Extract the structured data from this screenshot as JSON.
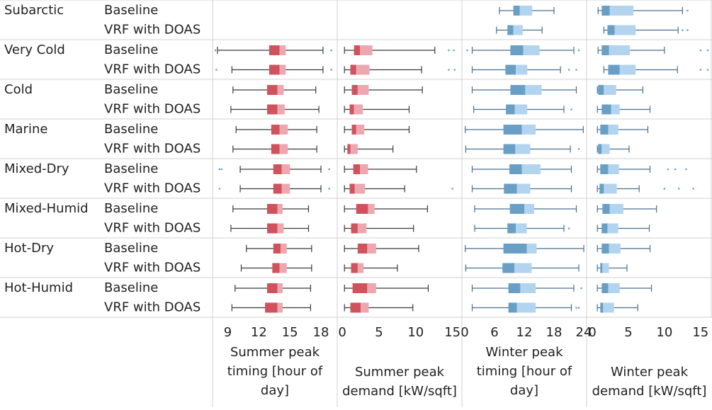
{
  "colors": {
    "summer_dark": "#d0525d",
    "summer_light": "#eda7ae",
    "winter_dark": "#6a9fc5",
    "winter_light": "#b3d4ef",
    "summer_whisker": "#3a3a3a",
    "winter_whisker": "#4a6f8f",
    "outlier": "#6a9fc5",
    "grid": "#d0d0d0"
  },
  "chart_data": {
    "type": "box",
    "climates": [
      "Subarctic",
      "Very Cold",
      "Cold",
      "Marine",
      "Mixed-Dry",
      "Mixed-Humid",
      "Hot-Dry",
      "Hot-Humid"
    ],
    "systems": [
      "Baseline",
      "VRF with DOAS"
    ],
    "panels": [
      {
        "id": "summer-timing",
        "label": "Summer peak timing [hour of day]",
        "label_lines": [
          "Summer peak",
          "timing [hour of",
          "day]"
        ],
        "range": [
          7.8,
          19.3
        ],
        "ticks": [
          9,
          12,
          15,
          18
        ],
        "tick_labels": [
          "9",
          "12",
          "15",
          "18"
        ],
        "season": "summer",
        "data": [
          [
            null,
            null
          ],
          [
            {
              "min": 8,
              "q1": 13,
              "med": 14,
              "q3": 14.6,
              "max": 18.2,
              "lo": [
                7.8
              ],
              "hi": [
                19
              ]
            },
            {
              "min": 9.4,
              "q1": 13,
              "med": 14,
              "q3": 14.6,
              "max": 18.2,
              "lo": [
                7.9
              ],
              "hi": [
                19
              ]
            }
          ],
          [
            {
              "min": 9.5,
              "q1": 12.8,
              "med": 13.8,
              "q3": 14.4,
              "max": 17.5,
              "lo": [],
              "hi": []
            },
            {
              "min": 9.3,
              "q1": 12.8,
              "med": 13.8,
              "q3": 14.5,
              "max": 17.8,
              "lo": [],
              "hi": []
            }
          ],
          [
            {
              "min": 9.8,
              "q1": 13.2,
              "med": 14,
              "q3": 14.8,
              "max": 17.6,
              "lo": [],
              "hi": []
            },
            {
              "min": 9.5,
              "q1": 13.2,
              "med": 14,
              "q3": 14.8,
              "max": 17.6,
              "lo": [],
              "hi": []
            }
          ],
          [
            {
              "min": 10.2,
              "q1": 13.4,
              "med": 14.2,
              "q3": 15,
              "max": 18,
              "lo": [
                8.2,
                8.4
              ],
              "hi": [
                18.8
              ]
            },
            {
              "min": 10.2,
              "q1": 13.4,
              "med": 14.2,
              "q3": 15,
              "max": 18,
              "lo": [
                8.2
              ],
              "hi": [
                18.8
              ]
            }
          ],
          [
            {
              "min": 9.5,
              "q1": 12.8,
              "med": 13.8,
              "q3": 14.3,
              "max": 16.8,
              "lo": [],
              "hi": []
            },
            {
              "min": 9.3,
              "q1": 12.8,
              "med": 13.8,
              "q3": 14.4,
              "max": 16.8,
              "lo": [],
              "hi": []
            }
          ],
          [
            {
              "min": 10.8,
              "q1": 13.4,
              "med": 14.1,
              "q3": 14.7,
              "max": 17.1,
              "lo": [],
              "hi": []
            },
            {
              "min": 10.3,
              "q1": 13.3,
              "med": 14,
              "q3": 14.7,
              "max": 17.1,
              "lo": [],
              "hi": []
            }
          ],
          [
            {
              "min": 9.7,
              "q1": 12.8,
              "med": 13.8,
              "q3": 14.3,
              "max": 17,
              "lo": [],
              "hi": []
            },
            {
              "min": 9.4,
              "q1": 12.6,
              "med": 13.8,
              "q3": 14.3,
              "max": 17,
              "lo": [],
              "hi": []
            }
          ]
        ]
      },
      {
        "id": "summer-demand",
        "label": "Summer peak demand [kW/sqft]",
        "label_lines": [
          "Summer peak",
          "demand [kW/sqft]"
        ],
        "range": [
          -0.3,
          15.9
        ],
        "ticks": [
          0,
          5,
          10,
          15
        ],
        "tick_labels": [
          "0",
          "5",
          "10",
          "15"
        ],
        "season": "summer",
        "data": [
          [
            null,
            null
          ],
          [
            {
              "min": 0.3,
              "q1": 1.6,
              "med": 2.4,
              "q3": 4.1,
              "max": 12.6,
              "lo": [],
              "hi": [
                14.5,
                15.2
              ]
            },
            {
              "min": 0.3,
              "q1": 1.1,
              "med": 1.9,
              "q3": 3.7,
              "max": 10.8,
              "lo": [],
              "hi": [
                14.5,
                15.3
              ]
            }
          ],
          [
            {
              "min": 0.3,
              "q1": 1.3,
              "med": 2.1,
              "q3": 3.6,
              "max": 10.9,
              "lo": [],
              "hi": []
            },
            {
              "min": 0.3,
              "q1": 1,
              "med": 1.6,
              "q3": 2.8,
              "max": 9.1,
              "lo": [],
              "hi": []
            }
          ],
          [
            {
              "min": 0.3,
              "q1": 1.3,
              "med": 1.9,
              "q3": 3,
              "max": 9.1,
              "lo": [],
              "hi": []
            },
            {
              "min": 0.3,
              "q1": 0.7,
              "med": 1.1,
              "q3": 2.1,
              "max": 6.9,
              "lo": [],
              "hi": []
            }
          ],
          [
            {
              "min": 0.3,
              "q1": 1.5,
              "med": 2.4,
              "q3": 3.5,
              "max": 10.1,
              "lo": [],
              "hi": []
            },
            {
              "min": 0.3,
              "q1": 1,
              "med": 1.7,
              "q3": 3.1,
              "max": 8.5,
              "lo": [],
              "hi": [
                15
              ]
            }
          ],
          [
            {
              "min": 0.3,
              "q1": 1.9,
              "med": 3.5,
              "q3": 4.4,
              "max": 11.6,
              "lo": [],
              "hi": []
            },
            {
              "min": 0.3,
              "q1": 1.2,
              "med": 2.1,
              "q3": 3.3,
              "max": 9.7,
              "lo": [],
              "hi": []
            }
          ],
          [
            {
              "min": 0.3,
              "q1": 2.1,
              "med": 3.4,
              "q3": 4.6,
              "max": 10.4,
              "lo": [],
              "hi": []
            },
            {
              "min": 0.3,
              "q1": 1.2,
              "med": 2.1,
              "q3": 2.9,
              "max": 7.5,
              "lo": [],
              "hi": []
            }
          ],
          [
            {
              "min": 0.3,
              "q1": 1.4,
              "med": 3.4,
              "q3": 4.6,
              "max": 11.7,
              "lo": [],
              "hi": []
            },
            {
              "min": 0.3,
              "q1": 1.1,
              "med": 2.5,
              "q3": 3.6,
              "max": 9.6,
              "lo": [],
              "hi": []
            }
          ]
        ]
      },
      {
        "id": "winter-timing",
        "label": "Winter peak timing [hour of day]",
        "label_lines": [
          "Winter peak",
          "timing [hour of",
          "day]"
        ],
        "range": [
          0,
          24
        ],
        "ticks": [
          0,
          6,
          12,
          18,
          24
        ],
        "tick_labels": [
          "0",
          "6",
          "12",
          "18",
          "24"
        ],
        "season": "winter",
        "data": [
          [
            {
              "min": 7,
              "q1": 9.8,
              "med": 11.1,
              "q3": 13.6,
              "max": 18,
              "lo": [],
              "hi": []
            },
            {
              "min": 6.4,
              "q1": 8.6,
              "med": 9.8,
              "q3": 11.7,
              "max": 15.6,
              "lo": [],
              "hi": []
            }
          ],
          [
            {
              "min": 1.5,
              "q1": 9.2,
              "med": 11.8,
              "q3": 15.1,
              "max": 22,
              "lo": [
                0.5
              ],
              "hi": [
                23
              ]
            },
            {
              "min": 1.5,
              "q1": 8.2,
              "med": 10.3,
              "q3": 12.6,
              "max": 19.3,
              "lo": [],
              "hi": [
                21,
                22.5
              ]
            }
          ],
          [
            {
              "min": 1.5,
              "q1": 9.2,
              "med": 12.2,
              "q3": 15.5,
              "max": 22.5,
              "lo": [],
              "hi": []
            },
            {
              "min": 1.8,
              "q1": 8.3,
              "med": 10.1,
              "q3": 12.6,
              "max": 20,
              "lo": [],
              "hi": [
                21.5
              ]
            }
          ],
          [
            {
              "min": 0.1,
              "q1": 7.8,
              "med": 11.5,
              "q3": 14.3,
              "max": 23.9,
              "lo": [],
              "hi": []
            },
            {
              "min": 0.2,
              "q1": 7.8,
              "med": 10.2,
              "q3": 13.2,
              "max": 21.3,
              "lo": [],
              "hi": [
                23
              ]
            }
          ],
          [
            {
              "min": 1.5,
              "q1": 9,
              "med": 11.5,
              "q3": 15.3,
              "max": 21.5,
              "lo": [],
              "hi": []
            },
            {
              "min": 1.5,
              "q1": 7.9,
              "med": 10.5,
              "q3": 13.2,
              "max": 21.5,
              "lo": [],
              "hi": []
            }
          ],
          [
            {
              "min": 2,
              "q1": 9.1,
              "med": 12,
              "q3": 14,
              "max": 22.5,
              "lo": [],
              "hi": []
            },
            {
              "min": 2,
              "q1": 8.6,
              "med": 10.3,
              "q3": 12.5,
              "max": 20,
              "lo": [],
              "hi": [
                21
              ]
            }
          ],
          [
            {
              "min": 0.1,
              "q1": 7.8,
              "med": 12.5,
              "q3": 14.5,
              "max": 24,
              "lo": [],
              "hi": []
            },
            {
              "min": 0.2,
              "q1": 7.6,
              "med": 10,
              "q3": 13.5,
              "max": 23,
              "lo": [],
              "hi": []
            }
          ],
          [
            {
              "min": 1.5,
              "q1": 8.8,
              "med": 11.2,
              "q3": 14.3,
              "max": 22,
              "lo": [],
              "hi": [
                23.5
              ]
            },
            {
              "min": 1.5,
              "q1": 8.8,
              "med": 10.5,
              "q3": 14.3,
              "max": 21.5,
              "lo": [],
              "hi": [
                22.5,
                23
              ]
            }
          ]
        ]
      },
      {
        "id": "winter-demand",
        "label": "Winter peak demand [kW/sqft]",
        "label_lines": [
          "Winter peak",
          "demand [kW/sqft]"
        ],
        "range": [
          -0.4,
          16.2
        ],
        "ticks": [
          0,
          5,
          10,
          15
        ],
        "tick_labels": [
          "0",
          "5",
          "10",
          "15"
        ],
        "season": "winter",
        "data": [
          [
            {
              "min": 0.8,
              "q1": 1.3,
              "med": 2.4,
              "q3": 5.7,
              "max": 12.5,
              "lo": [],
              "hi": [
                13.2
              ]
            },
            {
              "min": 1.6,
              "q1": 2.1,
              "med": 3.1,
              "q3": 6,
              "max": 11.9,
              "lo": [],
              "hi": [
                12.5,
                13.2
              ]
            }
          ],
          [
            {
              "min": 0.8,
              "q1": 1.3,
              "med": 2.3,
              "q3": 5.2,
              "max": 10,
              "lo": [],
              "hi": [
                15,
                16
              ]
            },
            {
              "min": 1.6,
              "q1": 2.2,
              "med": 3.8,
              "q3": 6,
              "max": 11.8,
              "lo": [],
              "hi": [
                15,
                16
              ]
            }
          ],
          [
            {
              "min": 0.7,
              "q1": 0.8,
              "med": 1.6,
              "q3": 3.3,
              "max": 7,
              "lo": [],
              "hi": []
            },
            {
              "min": 0.7,
              "q1": 1.3,
              "med": 2.6,
              "q3": 3.8,
              "max": 8,
              "lo": [],
              "hi": []
            }
          ],
          [
            {
              "min": 0.7,
              "q1": 1.1,
              "med": 2.2,
              "q3": 3.6,
              "max": 7.7,
              "lo": [],
              "hi": []
            },
            {
              "min": 0.7,
              "q1": 0.8,
              "med": 1.3,
              "q3": 2.4,
              "max": 5.1,
              "lo": [],
              "hi": []
            }
          ],
          [
            {
              "min": 0.7,
              "q1": 1.1,
              "med": 2.2,
              "q3": 3.7,
              "max": 8,
              "lo": [],
              "hi": [
                10.5,
                11.5,
                13
              ]
            },
            {
              "min": 0.7,
              "q1": 1,
              "med": 1.6,
              "q3": 3.4,
              "max": 6.5,
              "lo": [],
              "hi": [
                10,
                12,
                14
              ]
            }
          ],
          [
            {
              "min": 0.7,
              "q1": 1.4,
              "med": 2.4,
              "q3": 4.3,
              "max": 8.9,
              "lo": [],
              "hi": []
            },
            {
              "min": 0.7,
              "q1": 1.3,
              "med": 2.1,
              "q3": 3.6,
              "max": 7.9,
              "lo": [],
              "hi": []
            }
          ],
          [
            {
              "min": 0.7,
              "q1": 1.3,
              "med": 2.3,
              "q3": 3.9,
              "max": 8,
              "lo": [],
              "hi": []
            },
            {
              "min": 0.7,
              "q1": 1.1,
              "med": 1.4,
              "q3": 2.3,
              "max": 4.8,
              "lo": [],
              "hi": []
            }
          ],
          [
            {
              "min": 0.7,
              "q1": 1.3,
              "med": 2.2,
              "q3": 3.8,
              "max": 8.2,
              "lo": [],
              "hi": []
            },
            {
              "min": 0.7,
              "q1": 1.1,
              "med": 1.5,
              "q3": 3,
              "max": 6.3,
              "lo": [],
              "hi": []
            }
          ]
        ]
      }
    ]
  }
}
